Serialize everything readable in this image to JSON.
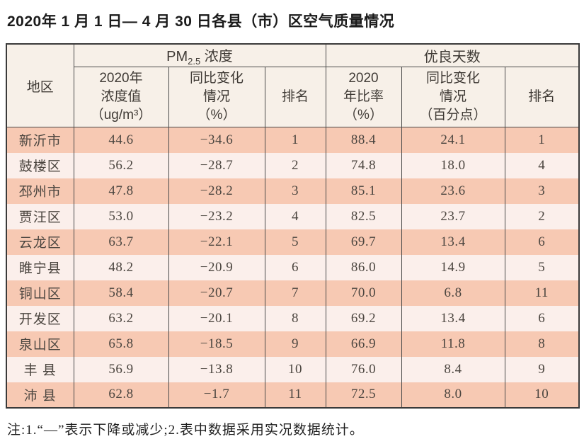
{
  "page": {
    "title": "2020年 1 月 1 日— 4 月 30 日各县（市）区空气质量情况",
    "note": "注:1.“—”表示下降或减少;2.表中数据采用实况数据统计。"
  },
  "colors": {
    "row_stripe_salmon": "#f7c9b3",
    "row_stripe_light": "#fbefeb",
    "header_background": "#f7f0e8",
    "border": "#3a3a3a",
    "body_text": "#4c4640"
  },
  "table": {
    "header": {
      "region": "地区",
      "pm_prefix": "PM",
      "pm_sub": "2.5",
      "pm_suffix": " 浓度",
      "good_group": "优良天数",
      "pm_value": "2020年\n浓度值\n（ug/m³）",
      "pm_change": "同比变化\n情况\n（%）",
      "pm_rank": "排名",
      "good_ratio": "2020\n年比率\n（%）",
      "good_change": "同比变化\n情况\n（百分点）",
      "good_rank": "排名"
    },
    "rows": [
      {
        "region": "新沂市",
        "pm_value": "44.6",
        "pm_change": "−34.6",
        "pm_rank": "1",
        "good_ratio": "88.4",
        "good_change": "24.1",
        "good_rank": "1"
      },
      {
        "region": "鼓楼区",
        "pm_value": "56.2",
        "pm_change": "−28.7",
        "pm_rank": "2",
        "good_ratio": "74.8",
        "good_change": "18.0",
        "good_rank": "4"
      },
      {
        "region": "邳州市",
        "pm_value": "47.8",
        "pm_change": "−28.2",
        "pm_rank": "3",
        "good_ratio": "85.1",
        "good_change": "23.6",
        "good_rank": "3"
      },
      {
        "region": "贾汪区",
        "pm_value": "53.0",
        "pm_change": "−23.2",
        "pm_rank": "4",
        "good_ratio": "82.5",
        "good_change": "23.7",
        "good_rank": "2"
      },
      {
        "region": "云龙区",
        "pm_value": "63.7",
        "pm_change": "−22.1",
        "pm_rank": "5",
        "good_ratio": "69.7",
        "good_change": "13.4",
        "good_rank": "6"
      },
      {
        "region": "睢宁县",
        "pm_value": "48.2",
        "pm_change": "−20.9",
        "pm_rank": "6",
        "good_ratio": "86.0",
        "good_change": "14.9",
        "good_rank": "5"
      },
      {
        "region": "铜山区",
        "pm_value": "58.4",
        "pm_change": "−20.7",
        "pm_rank": "7",
        "good_ratio": "70.0",
        "good_change": "6.8",
        "good_rank": "11"
      },
      {
        "region": "开发区",
        "pm_value": "63.2",
        "pm_change": "−20.1",
        "pm_rank": "8",
        "good_ratio": "69.2",
        "good_change": "13.4",
        "good_rank": "6"
      },
      {
        "region": "泉山区",
        "pm_value": "65.8",
        "pm_change": "−18.5",
        "pm_rank": "9",
        "good_ratio": "66.9",
        "good_change": "11.8",
        "good_rank": "8"
      },
      {
        "region": "丰 县",
        "pm_value": "56.9",
        "pm_change": "−13.8",
        "pm_rank": "10",
        "good_ratio": "76.0",
        "good_change": "8.4",
        "good_rank": "9"
      },
      {
        "region": "沛 县",
        "pm_value": "62.8",
        "pm_change": "−1.7",
        "pm_rank": "11",
        "good_ratio": "72.5",
        "good_change": "8.0",
        "good_rank": "10"
      }
    ]
  }
}
